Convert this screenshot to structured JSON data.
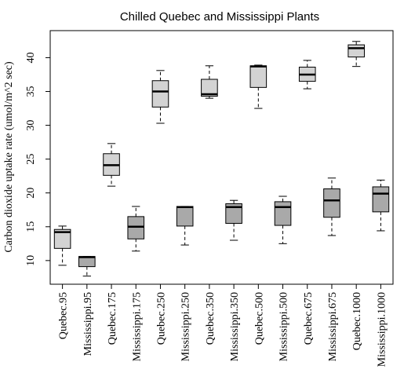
{
  "chart_data": {
    "type": "boxplot",
    "title": "Chilled Quebec and Mississippi Plants",
    "xlabel": "",
    "ylabel": "Carbon dioxide uptake rate (umol/m^2 sec)",
    "ylim": [
      6.5,
      44
    ],
    "yticks": [
      10,
      15,
      20,
      25,
      30,
      35,
      40
    ],
    "grid": false,
    "colors": {
      "Quebec": "#d3d3d3",
      "Mississippi": "#a9a9a9"
    },
    "categories": [
      "Quebec.95",
      "Mississippi.95",
      "Quebec.175",
      "Mississippi.175",
      "Quebec.250",
      "Mississippi.250",
      "Quebec.350",
      "Mississippi.350",
      "Quebec.500",
      "Mississippi.500",
      "Quebec.675",
      "Mississippi.675",
      "Quebec.1000",
      "Mississippi.1000"
    ],
    "boxes": [
      {
        "min": 9.3,
        "q1": 11.8,
        "median": 14.2,
        "q3": 14.6,
        "max": 15.1,
        "group": "Quebec"
      },
      {
        "min": 7.7,
        "q1": 9.1,
        "median": 10.5,
        "q3": 10.6,
        "max": 10.6,
        "group": "Mississippi"
      },
      {
        "min": 21.0,
        "q1": 22.6,
        "median": 24.1,
        "q3": 25.8,
        "max": 27.3,
        "group": "Quebec"
      },
      {
        "min": 11.4,
        "q1": 13.2,
        "median": 15.0,
        "q3": 16.5,
        "max": 18.0,
        "group": "Mississippi"
      },
      {
        "min": 30.3,
        "q1": 32.7,
        "median": 35.0,
        "q3": 36.6,
        "max": 38.1,
        "group": "Quebec"
      },
      {
        "min": 12.3,
        "q1": 15.1,
        "median": 17.9,
        "q3": 18.0,
        "max": 18.0,
        "group": "Mississippi"
      },
      {
        "min": 34.0,
        "q1": 34.3,
        "median": 34.6,
        "q3": 36.8,
        "max": 38.8,
        "group": "Quebec"
      },
      {
        "min": 13.0,
        "q1": 15.5,
        "median": 17.9,
        "q3": 18.4,
        "max": 18.9,
        "group": "Mississippi"
      },
      {
        "min": 32.5,
        "q1": 35.6,
        "median": 38.7,
        "q3": 38.8,
        "max": 38.9,
        "group": "Quebec"
      },
      {
        "min": 12.5,
        "q1": 15.2,
        "median": 17.9,
        "q3": 18.7,
        "max": 19.5,
        "group": "Mississippi"
      },
      {
        "min": 35.4,
        "q1": 36.5,
        "median": 37.5,
        "q3": 38.6,
        "max": 39.6,
        "group": "Quebec"
      },
      {
        "min": 13.7,
        "q1": 16.4,
        "median": 18.9,
        "q3": 20.6,
        "max": 22.2,
        "group": "Mississippi"
      },
      {
        "min": 38.7,
        "q1": 40.1,
        "median": 41.4,
        "q3": 41.9,
        "max": 42.4,
        "group": "Quebec"
      },
      {
        "min": 14.4,
        "q1": 17.2,
        "median": 19.9,
        "q3": 20.9,
        "max": 21.9,
        "group": "Mississippi"
      }
    ]
  }
}
